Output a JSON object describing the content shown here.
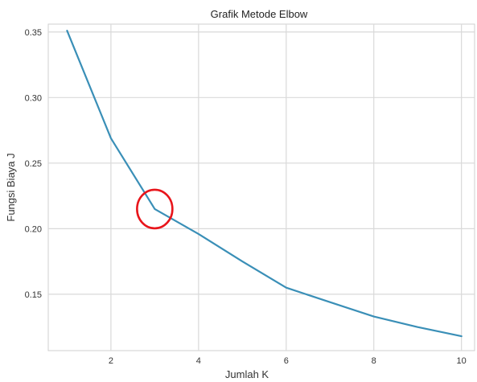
{
  "chart_data": {
    "type": "line",
    "title": "Grafik Metode Elbow",
    "xlabel": "Jumlah K",
    "ylabel": "Fungsi Biaya J",
    "xlim": [
      0.57,
      10.3
    ],
    "ylim": [
      0.107,
      0.356
    ],
    "x_ticks": [
      2,
      4,
      6,
      8,
      10
    ],
    "y_ticks": [
      0.15,
      0.2,
      0.25,
      0.3,
      0.35
    ],
    "x_tick_labels": [
      "2",
      "4",
      "6",
      "8",
      "10"
    ],
    "y_tick_labels": [
      "0.15",
      "0.20",
      "0.25",
      "0.30",
      "0.35"
    ],
    "grid": true,
    "series": [
      {
        "x": [
          1,
          2,
          3,
          4,
          5,
          6,
          7,
          8,
          9,
          10
        ],
        "values": [
          0.351,
          0.269,
          0.215,
          0.196,
          0.175,
          0.155,
          0.144,
          0.133,
          0.125,
          0.118
        ]
      }
    ],
    "highlight": {
      "x": 3,
      "y": 0.215,
      "shape": "circle"
    },
    "colors": {
      "line": "#3a8fb7",
      "highlight": "#e8151b",
      "grid": "#d9d9d9"
    }
  }
}
